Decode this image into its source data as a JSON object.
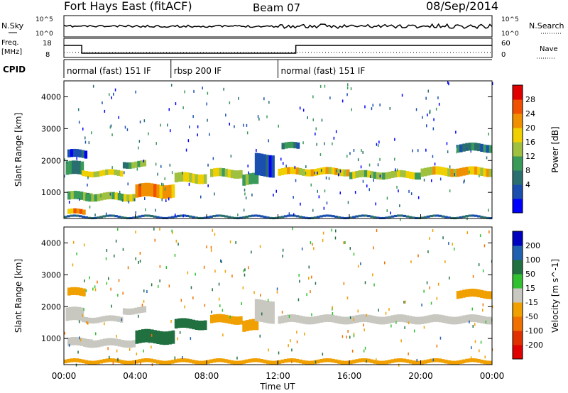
{
  "header": {
    "radar": "Fort Hays East (fitACF)",
    "beam": "Beam 07",
    "date": "08/Sep/2014"
  },
  "chart_data": [
    {
      "type": "line",
      "name": "noise-panel",
      "left_labels": [
        "N.Sky"
      ],
      "right_label": "N.Search",
      "yticks_left": [
        "10^5",
        "10^0"
      ],
      "yticks_right": [
        "10^5",
        "10^0"
      ],
      "note": "noise traces near 10^2, increased scatter after 12:00"
    },
    {
      "type": "line",
      "name": "frequency-panel",
      "left_labels": [
        "Freq.",
        "[MHz]"
      ],
      "right_label": "Nave",
      "yticks_left": [
        "18",
        "8"
      ],
      "yticks_right": [
        "60",
        "0"
      ],
      "freq_mhz": [
        {
          "from_hour": 0,
          "to_hour": 1,
          "value": 16
        },
        {
          "from_hour": 1,
          "to_hour": 13,
          "value": 10.5
        },
        {
          "from_hour": 13,
          "to_hour": 24,
          "value": 16
        }
      ]
    },
    {
      "type": "table",
      "name": "cpid-panel",
      "label": "CPID",
      "segments": [
        {
          "from_hour": 0,
          "to_hour": 6,
          "label": "normal (fast) 151 IF"
        },
        {
          "from_hour": 6,
          "to_hour": 12,
          "label": "rbsp 200 IF"
        },
        {
          "from_hour": 12,
          "to_hour": 24,
          "label": "normal (fast) 151 IF"
        }
      ]
    },
    {
      "type": "heatmap",
      "name": "power-panel",
      "ylabel": "Slant Range [km]",
      "ylim": [
        180,
        4500
      ],
      "yticks": [
        1000,
        2000,
        3000,
        4000
      ],
      "colorbar_label": "Power [dB]",
      "colorbar_ticks": [
        "28",
        "24",
        "20",
        "16",
        "12",
        "8",
        "4"
      ],
      "colors": [
        "#0000ff",
        "#1a4fb0",
        "#2a6f6f",
        "#3a9a5a",
        "#a0c040",
        "#f0d000",
        "#f09000",
        "#f05000",
        "#e00000"
      ],
      "bands": [
        {
          "x0": 0.1,
          "x1": 1.1,
          "y": 1750,
          "h": 420,
          "v": 12
        },
        {
          "x0": 0.2,
          "x1": 1.3,
          "y": 2200,
          "h": 250,
          "v": 6
        },
        {
          "x0": 1.0,
          "x1": 3.3,
          "y": 1600,
          "h": 180,
          "v": 20
        },
        {
          "x0": 3.3,
          "x1": 4.6,
          "y": 1880,
          "h": 200,
          "v": 14
        },
        {
          "x0": 0.2,
          "x1": 1.6,
          "y": 880,
          "h": 260,
          "v": 14
        },
        {
          "x0": 0.2,
          "x1": 1.2,
          "y": 380,
          "h": 160,
          "v": 25
        },
        {
          "x0": 1.2,
          "x1": 4.0,
          "y": 860,
          "h": 230,
          "v": 18
        },
        {
          "x0": 4.0,
          "x1": 6.2,
          "y": 1050,
          "h": 420,
          "v": 26
        },
        {
          "x0": 6.2,
          "x1": 8.0,
          "y": 1450,
          "h": 300,
          "v": 20
        },
        {
          "x0": 8.2,
          "x1": 10.0,
          "y": 1600,
          "h": 260,
          "v": 18
        },
        {
          "x0": 10.0,
          "x1": 10.9,
          "y": 1400,
          "h": 350,
          "v": 14
        },
        {
          "x0": 10.7,
          "x1": 11.8,
          "y": 1850,
          "h": 700,
          "v": 6
        },
        {
          "x0": 12.0,
          "x1": 16.0,
          "y": 1650,
          "h": 220,
          "v": 22
        },
        {
          "x0": 16.0,
          "x1": 20.0,
          "y": 1550,
          "h": 220,
          "v": 18
        },
        {
          "x0": 20.0,
          "x1": 24.0,
          "y": 1650,
          "h": 260,
          "v": 22
        },
        {
          "x0": 12.2,
          "x1": 13.2,
          "y": 2450,
          "h": 200,
          "v": 10
        },
        {
          "x0": 22.0,
          "x1": 24.0,
          "y": 2400,
          "h": 250,
          "v": 10
        },
        {
          "x0": 0.0,
          "x1": 24.0,
          "y": 230,
          "h": 70,
          "v": 8
        }
      ]
    },
    {
      "type": "heatmap",
      "name": "velocity-panel",
      "ylabel": "Slant Range [km]",
      "xlabel": "Time UT",
      "ylim": [
        180,
        4500
      ],
      "yticks": [
        1000,
        2000,
        3000,
        4000
      ],
      "xticks": [
        "00:00",
        "04:00",
        "08:00",
        "12:00",
        "16:00",
        "20:00",
        "00:00"
      ],
      "colorbar_label": "Velocity [m s^-1]",
      "colorbar_ticks": [
        "200",
        "100",
        "50",
        "15",
        "-15",
        "-50",
        "-100",
        "-200"
      ],
      "colors": [
        "#0000c0",
        "#2060b0",
        "#207040",
        "#30c030",
        "#c8c8c0",
        "#f0a000",
        "#f07000",
        "#e03000",
        "#e00000"
      ],
      "bands": [
        {
          "x0": 0.1,
          "x1": 1.1,
          "y": 1750,
          "h": 420,
          "v": 0
        },
        {
          "x0": 1.0,
          "x1": 3.3,
          "y": 1600,
          "h": 180,
          "v": 0
        },
        {
          "x0": 3.3,
          "x1": 4.6,
          "y": 1880,
          "h": 200,
          "v": 0
        },
        {
          "x0": 0.2,
          "x1": 1.6,
          "y": 880,
          "h": 260,
          "v": 0
        },
        {
          "x0": 1.2,
          "x1": 4.0,
          "y": 860,
          "h": 230,
          "v": 0
        },
        {
          "x0": 4.0,
          "x1": 6.2,
          "y": 1050,
          "h": 420,
          "v": 40
        },
        {
          "x0": 6.2,
          "x1": 8.0,
          "y": 1450,
          "h": 300,
          "v": 45
        },
        {
          "x0": 8.2,
          "x1": 10.0,
          "y": 1600,
          "h": 260,
          "v": -40
        },
        {
          "x0": 10.0,
          "x1": 10.9,
          "y": 1400,
          "h": 350,
          "v": -40
        },
        {
          "x0": 10.7,
          "x1": 11.8,
          "y": 1850,
          "h": 700,
          "v": 0
        },
        {
          "x0": 12.0,
          "x1": 24.0,
          "y": 1600,
          "h": 240,
          "v": 0
        },
        {
          "x0": 0.2,
          "x1": 1.2,
          "y": 2450,
          "h": 250,
          "v": -40
        },
        {
          "x0": 22.0,
          "x1": 24.0,
          "y": 2400,
          "h": 250,
          "v": -40
        },
        {
          "x0": 0.0,
          "x1": 24.0,
          "y": 280,
          "h": 120,
          "v": -40
        }
      ]
    }
  ]
}
